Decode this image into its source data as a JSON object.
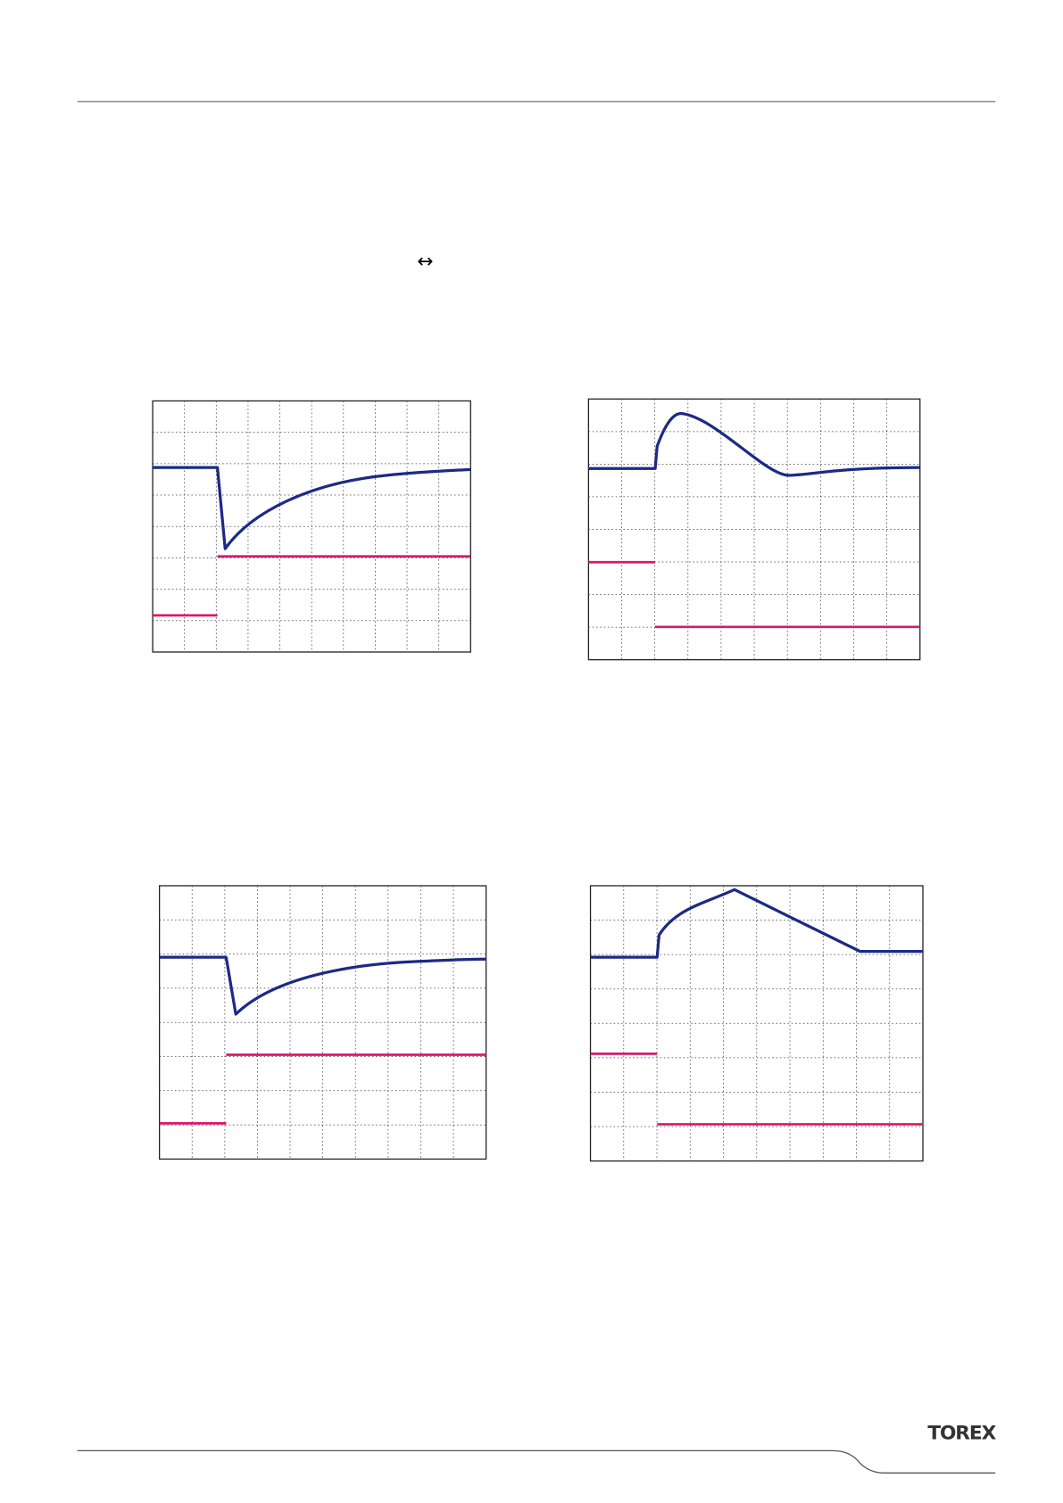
{
  "body": {
    "symbol": "↔"
  },
  "footer": {
    "logo": "TOREX"
  }
}
